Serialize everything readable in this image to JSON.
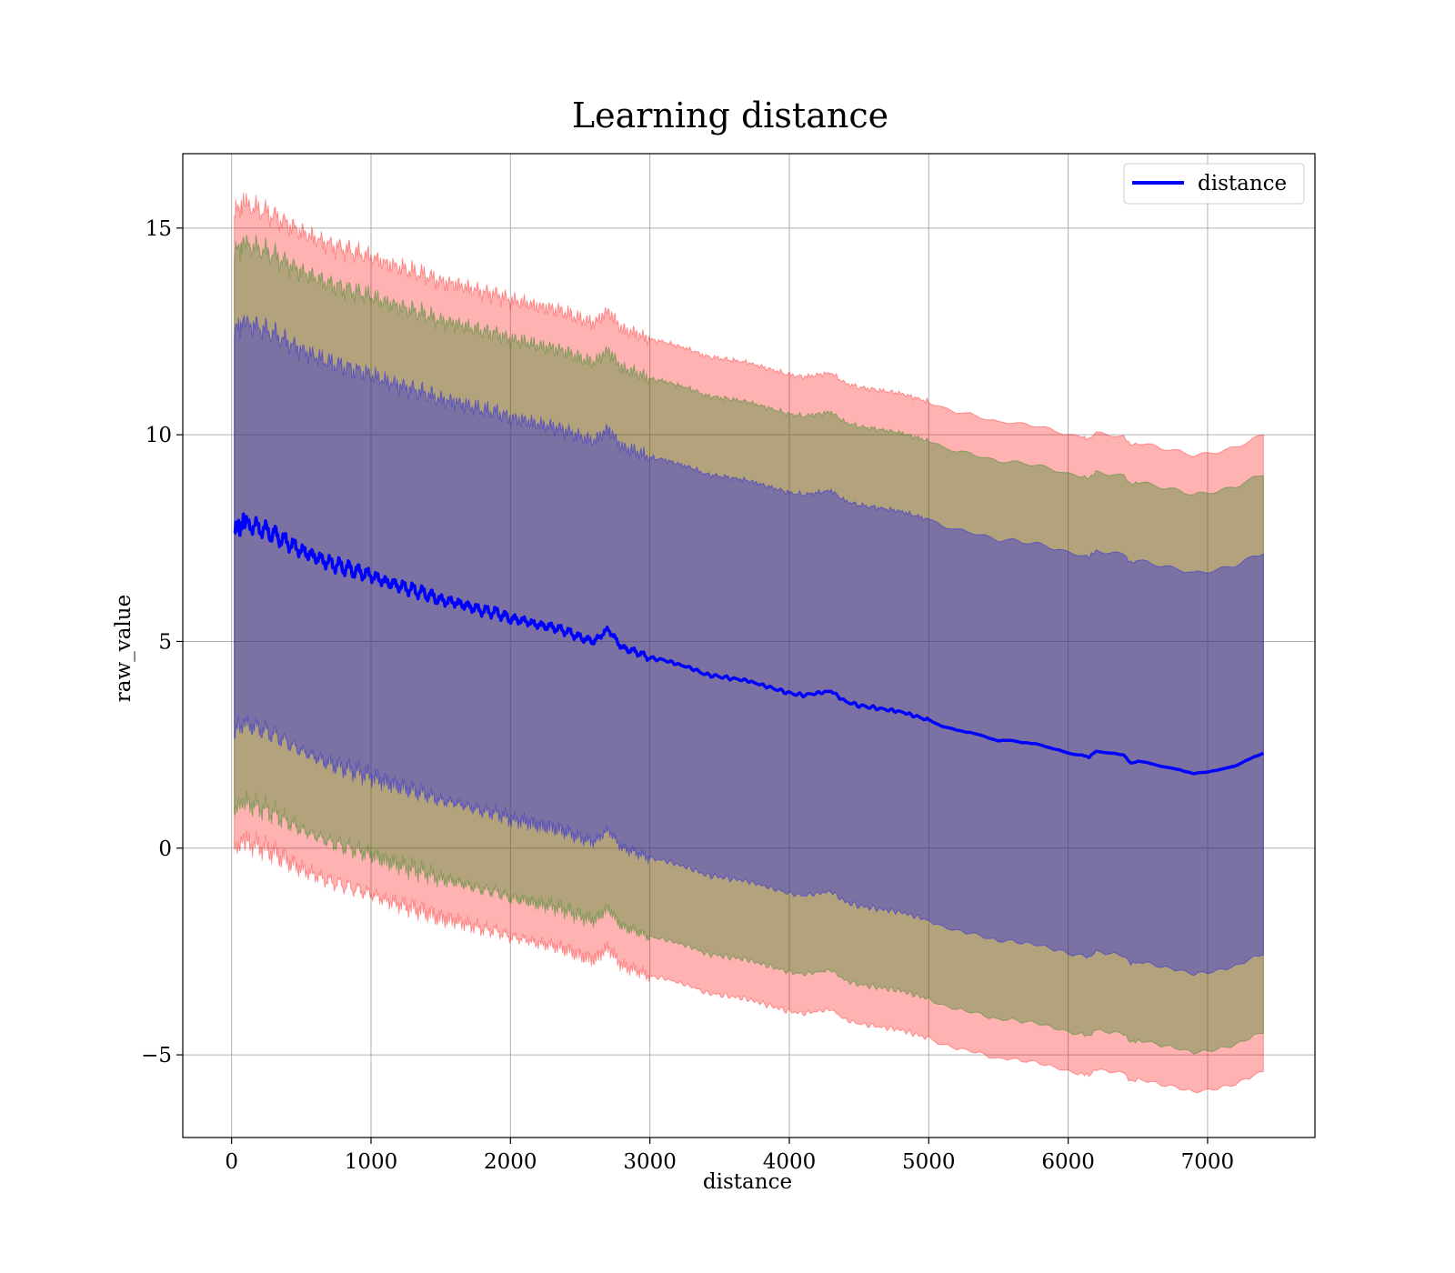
{
  "chart_data": {
    "type": "line",
    "title": "Learning distance",
    "xlabel": "distance",
    "ylabel": "raw_value",
    "xlim": [
      -350,
      7770
    ],
    "ylim": [
      -7,
      16.8
    ],
    "xticks": [
      0,
      1000,
      2000,
      3000,
      4000,
      5000,
      6000,
      7000
    ],
    "yticks": [
      -5,
      0,
      5,
      10,
      15
    ],
    "xtick_labels": [
      "0",
      "1000",
      "2000",
      "3000",
      "4000",
      "5000",
      "6000",
      "7000"
    ],
    "ytick_labels": [
      "−5",
      "0",
      "5",
      "10",
      "15"
    ],
    "grid": true,
    "legend": {
      "placement": "top-right",
      "entries": [
        "distance"
      ]
    },
    "series": [
      {
        "name": "distance",
        "color": "#0000ff",
        "x": [
          20,
          100,
          200,
          300,
          400,
          500,
          600,
          700,
          800,
          900,
          1000,
          1100,
          1200,
          1300,
          1400,
          1500,
          1600,
          1700,
          1800,
          1900,
          2000,
          2100,
          2200,
          2300,
          2400,
          2500,
          2600,
          2700,
          2800,
          2900,
          3000,
          3100,
          3200,
          3300,
          3400,
          3500,
          3600,
          3700,
          3800,
          3900,
          4000,
          4100,
          4200,
          4300,
          4400,
          4500,
          4600,
          4700,
          4800,
          4900,
          5000,
          5100,
          5200,
          5300,
          5400,
          5500,
          5600,
          5700,
          5800,
          5900,
          6000,
          6100,
          6150,
          6200,
          6300,
          6400,
          6450,
          6500,
          6600,
          6700,
          6800,
          6900,
          7000,
          7100,
          7200,
          7300,
          7400
        ],
        "y": [
          7.75,
          7.85,
          7.75,
          7.6,
          7.4,
          7.2,
          7.05,
          6.9,
          6.8,
          6.7,
          6.6,
          6.45,
          6.35,
          6.25,
          6.15,
          6.0,
          5.95,
          5.85,
          5.75,
          5.7,
          5.55,
          5.5,
          5.4,
          5.35,
          5.25,
          5.1,
          5.0,
          5.3,
          4.85,
          4.75,
          4.6,
          4.55,
          4.45,
          4.35,
          4.2,
          4.15,
          4.1,
          4.05,
          3.95,
          3.85,
          3.75,
          3.7,
          3.75,
          3.8,
          3.55,
          3.45,
          3.4,
          3.35,
          3.3,
          3.2,
          3.1,
          2.95,
          2.85,
          2.8,
          2.7,
          2.6,
          2.6,
          2.55,
          2.5,
          2.4,
          2.3,
          2.25,
          2.2,
          2.35,
          2.3,
          2.25,
          2.05,
          2.1,
          2.05,
          1.95,
          1.9,
          1.8,
          1.85,
          1.9,
          2.0,
          2.15,
          2.3
        ]
      }
    ],
    "bands": [
      {
        "color": "#ff0000",
        "alpha": 0.3,
        "half_width": 7.7
      },
      {
        "color": "#008000",
        "alpha": 0.3,
        "half_width": 6.75
      },
      {
        "color": "#0000ff",
        "alpha": 0.3,
        "half_width": 4.85
      }
    ]
  }
}
